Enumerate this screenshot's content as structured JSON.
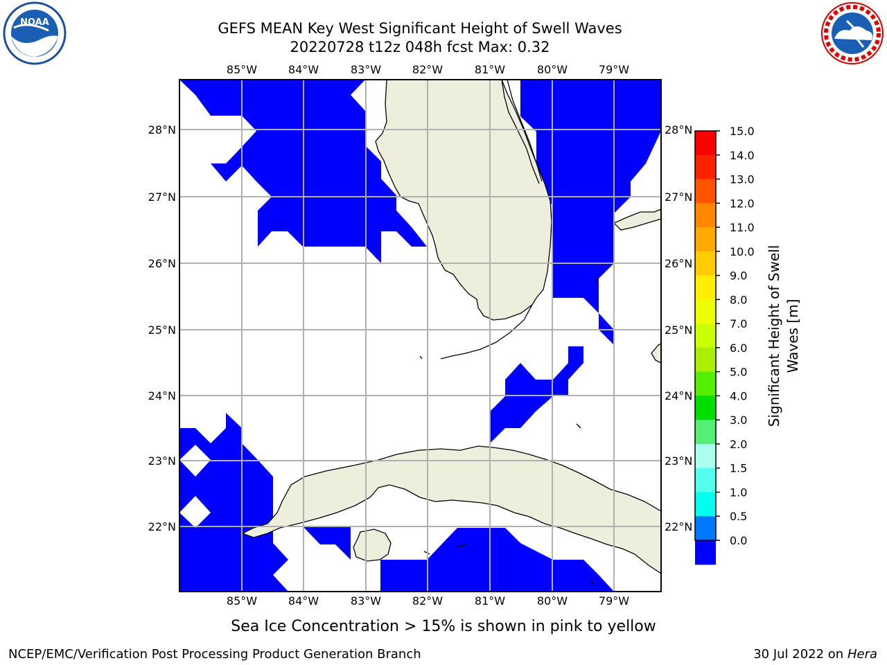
{
  "title": {
    "line1": "GEFS MEAN Key West Significant Height of Swell Waves",
    "line2": "20220728 t12z 048h fcst   Max: 0.32"
  },
  "logos": {
    "noaa": {
      "text": "NOAA",
      "ring_text": "NATIONAL OCEANIC AND ATMOSPHERIC ADMINISTRATION · U.S. DEPARTMENT OF COMMERCE"
    },
    "nws": {
      "ring_text": "NATIONAL WEATHER SERVICE"
    }
  },
  "map": {
    "lon_ticks": [
      "85°W",
      "84°W",
      "83°W",
      "82°W",
      "81°W",
      "80°W",
      "79°W"
    ],
    "lat_ticks": [
      "28°N",
      "27°N",
      "26°N",
      "25°N",
      "24°N",
      "23°N",
      "22°N"
    ],
    "field_color": "#0000ff",
    "land_color": "#eeeedd",
    "grid": true
  },
  "colorbar": {
    "label_line1": "Significant Height of Swell",
    "label_line2": "Waves [m]",
    "ticks": [
      "15.0",
      "14.0",
      "13.0",
      "12.0",
      "11.0",
      "10.0",
      "9.0",
      "8.0",
      "7.0",
      "6.0",
      "5.0",
      "4.0",
      "3.0",
      "2.0",
      "1.5",
      "1.0",
      "0.5",
      "0.0"
    ],
    "colors": [
      "#ff0000",
      "#ff2200",
      "#ff5500",
      "#ff8800",
      "#ffaa00",
      "#ffcc00",
      "#ffee00",
      "#eeff00",
      "#ccff00",
      "#aaee00",
      "#55ee00",
      "#00dd00",
      "#55ee77",
      "#aaffee",
      "#55ffee",
      "#00ffee",
      "#0077ff",
      "#0000ff"
    ]
  },
  "note": "Sea Ice Concentration > 15% is shown in pink to yellow",
  "footer": {
    "left": "NCEP/EMC/Verification Post Processing Product Generation Branch",
    "date": "30 Jul 2022 on ",
    "host": "Hera"
  }
}
